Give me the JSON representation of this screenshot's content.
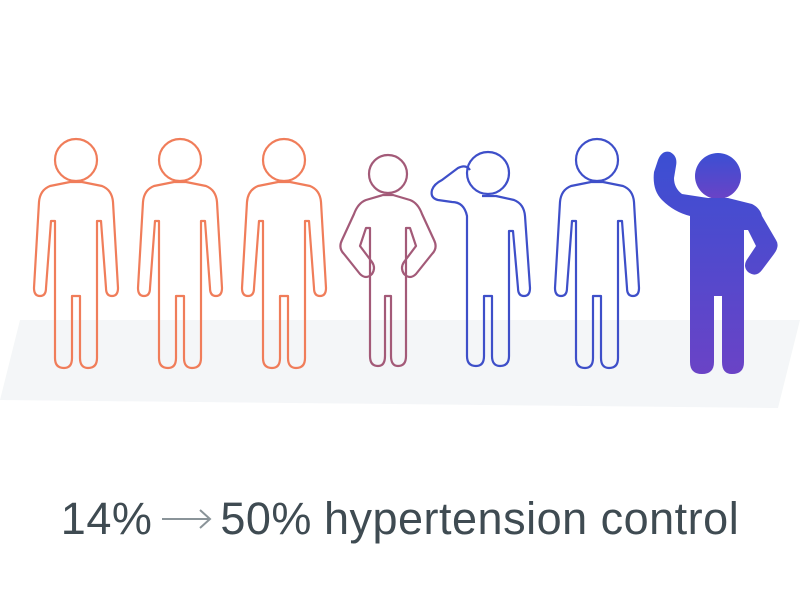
{
  "caption": {
    "start_value": "14%",
    "end_value": "50%",
    "label": "hypertension control"
  },
  "colors": {
    "orange": "#f07d5a",
    "mauve": "#a35a78",
    "blue": "#3e4fc9",
    "filled_top": "#3b4fd3",
    "filled_bottom": "#6a43c6",
    "floor": "#f4f6f8",
    "text": "#3f4b52"
  },
  "figures": [
    {
      "name": "person-outline-1",
      "color": "orange",
      "pose": "standing"
    },
    {
      "name": "person-outline-2",
      "color": "orange",
      "pose": "standing"
    },
    {
      "name": "person-outline-3",
      "color": "orange",
      "pose": "standing"
    },
    {
      "name": "person-outline-4",
      "color": "mauve",
      "pose": "hands-on-hips"
    },
    {
      "name": "person-outline-5",
      "color": "blue",
      "pose": "hand-on-head"
    },
    {
      "name": "person-outline-6",
      "color": "blue",
      "pose": "standing"
    },
    {
      "name": "person-filled-7",
      "color": "filled",
      "pose": "arm-raised"
    }
  ]
}
